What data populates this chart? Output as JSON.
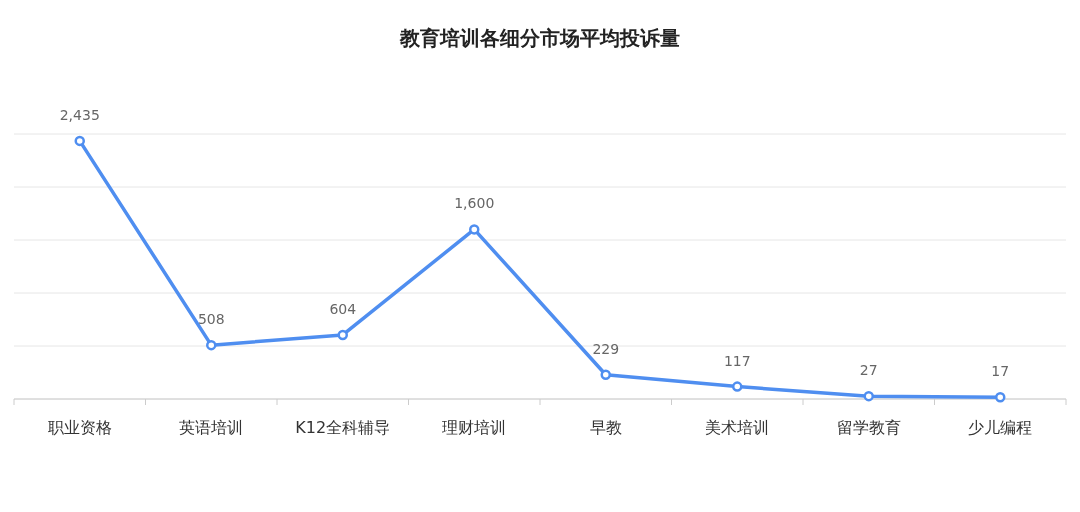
{
  "chart_data": {
    "type": "line",
    "title": "教育培训各细分市场平均投诉量",
    "categories": [
      "职业资格",
      "英语培训",
      "K12全科辅导",
      "理财培训",
      "早教",
      "美术培训",
      "留学教育",
      "少儿编程"
    ],
    "series": [
      {
        "color": "#4f8ef0",
        "values": [
          2435,
          508,
          604,
          1600,
          229,
          117,
          27,
          17
        ],
        "value_labels": [
          "2,435",
          "508",
          "604",
          "1,600",
          "229",
          "117",
          "27",
          "17"
        ]
      }
    ],
    "ylim": [
      0,
      2500
    ],
    "yticks": [
      {
        "value": 0,
        "label": null
      },
      {
        "value": 500,
        "label": null
      },
      {
        "value": 1000,
        "label": null
      },
      {
        "value": 1500,
        "label": null
      },
      {
        "value": 2000,
        "label": null
      },
      {
        "value": 2500,
        "label": null
      }
    ],
    "tick_labels": "x",
    "grid": "y",
    "marker": "circle",
    "line_style": "solid"
  }
}
